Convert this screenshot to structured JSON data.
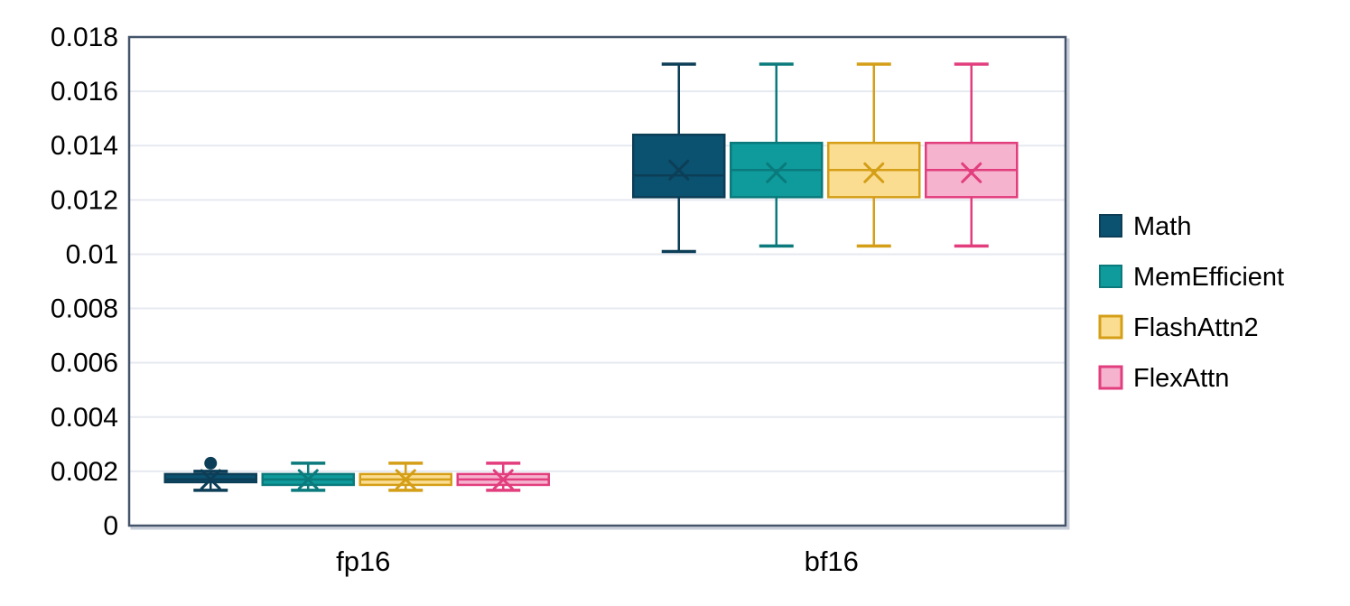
{
  "chart_data": {
    "type": "boxplot",
    "title": "",
    "xlabel": "",
    "ylabel": "",
    "categories": [
      "fp16",
      "bf16"
    ],
    "ylim": [
      0,
      0.018
    ],
    "grid": true,
    "legend_position": "right",
    "yticks": [
      {
        "value": 0,
        "label": "0"
      },
      {
        "value": 0.002,
        "label": "0.002"
      },
      {
        "value": 0.004,
        "label": "0.004"
      },
      {
        "value": 0.006,
        "label": "0.006"
      },
      {
        "value": 0.008,
        "label": "0.008"
      },
      {
        "value": 0.01,
        "label": "0.01"
      },
      {
        "value": 0.012,
        "label": "0.012"
      },
      {
        "value": 0.014,
        "label": "0.014"
      },
      {
        "value": 0.016,
        "label": "0.016"
      },
      {
        "value": 0.018,
        "label": "0.018"
      }
    ],
    "series": [
      {
        "name": "Math",
        "fill": "#0a5270",
        "stroke": "#0d3e57",
        "legend_style": "solid",
        "boxes": [
          {
            "category": "fp16",
            "whisker_low": 0.0013,
            "q1": 0.0016,
            "median": 0.0017,
            "q3": 0.0019,
            "whisker_high": 0.002,
            "mean": 0.0017,
            "outliers": [
              0.0023
            ]
          },
          {
            "category": "bf16",
            "whisker_low": 0.0101,
            "q1": 0.0121,
            "median": 0.0129,
            "q3": 0.0144,
            "whisker_high": 0.017,
            "mean": 0.0131,
            "outliers": []
          }
        ]
      },
      {
        "name": "MemEfficient",
        "fill": "#0f9b9b",
        "stroke": "#0a7a7c",
        "legend_style": "solid",
        "boxes": [
          {
            "category": "fp16",
            "whisker_low": 0.0013,
            "q1": 0.0015,
            "median": 0.0017,
            "q3": 0.0019,
            "whisker_high": 0.0023,
            "mean": 0.0017,
            "outliers": []
          },
          {
            "category": "bf16",
            "whisker_low": 0.0103,
            "q1": 0.0121,
            "median": 0.0131,
            "q3": 0.0141,
            "whisker_high": 0.017,
            "mean": 0.013,
            "outliers": []
          }
        ]
      },
      {
        "name": "FlashAttn2",
        "fill": "#fbdd92",
        "stroke": "#d49e17",
        "legend_style": "outline",
        "boxes": [
          {
            "category": "fp16",
            "whisker_low": 0.0013,
            "q1": 0.0015,
            "median": 0.0017,
            "q3": 0.0019,
            "whisker_high": 0.0023,
            "mean": 0.0017,
            "outliers": []
          },
          {
            "category": "bf16",
            "whisker_low": 0.0103,
            "q1": 0.0121,
            "median": 0.0131,
            "q3": 0.0141,
            "whisker_high": 0.017,
            "mean": 0.013,
            "outliers": []
          }
        ]
      },
      {
        "name": "FlexAttn",
        "fill": "#f5b3ce",
        "stroke": "#e23e7e",
        "legend_style": "outline",
        "boxes": [
          {
            "category": "fp16",
            "whisker_low": 0.0013,
            "q1": 0.0015,
            "median": 0.0017,
            "q3": 0.0019,
            "whisker_high": 0.0023,
            "mean": 0.0017,
            "outliers": []
          },
          {
            "category": "bf16",
            "whisker_low": 0.0103,
            "q1": 0.0121,
            "median": 0.0131,
            "q3": 0.0141,
            "whisker_high": 0.017,
            "mean": 0.013,
            "outliers": []
          }
        ]
      }
    ]
  },
  "style": {
    "plot_border_color": "#44546a",
    "plot_shadow_color": "#c9cfda",
    "gridline_color": "#e6e9f0",
    "text_color": "#000000",
    "background": "#ffffff"
  }
}
